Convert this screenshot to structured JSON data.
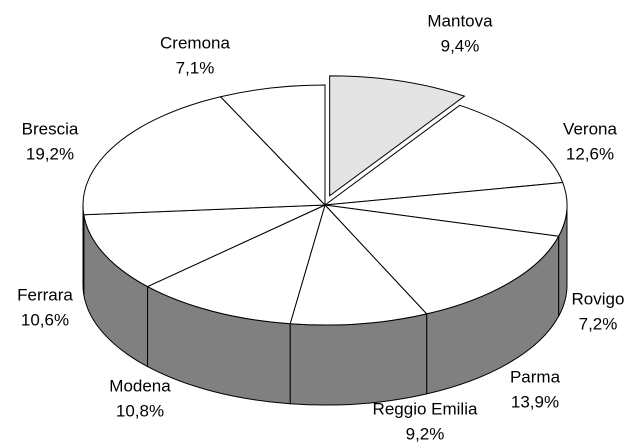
{
  "chart_data": {
    "type": "pie",
    "categories": [
      "Mantova",
      "Verona",
      "Rovigo",
      "Parma",
      "Reggio Emilia",
      "Modena",
      "Ferrara",
      "Brescia",
      "Cremona"
    ],
    "values": [
      9.4,
      12.6,
      7.2,
      13.9,
      9.2,
      10.8,
      10.6,
      19.2,
      7.1
    ],
    "value_labels": [
      "9,4%",
      "12,6%",
      "7,2%",
      "13,9%",
      "9,2%",
      "10,8%",
      "10,6%",
      "19,2%",
      "7,1%"
    ],
    "colors": [
      "#e4e4e4",
      "#ffffff",
      "#ffffff",
      "#ffffff",
      "#ffffff",
      "#ffffff",
      "#ffffff",
      "#ffffff",
      "#ffffff"
    ],
    "side_color": "#808080"
  }
}
